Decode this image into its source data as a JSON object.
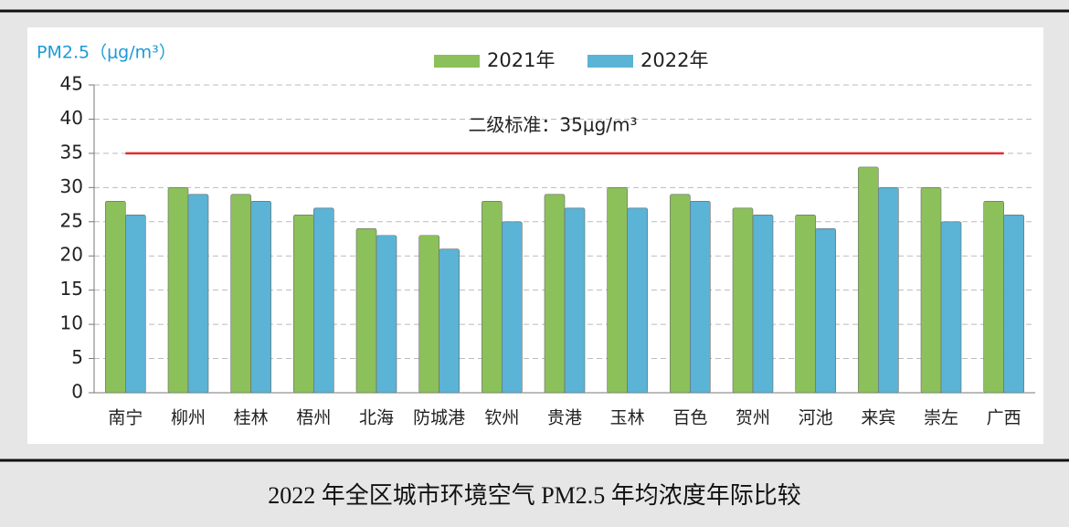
{
  "chart_data": {
    "type": "bar",
    "title": "2022 年全区城市环境空气 PM2.5 年均浓度年际比较",
    "y_label": "PM2.5（μg/m³）",
    "categories": [
      "南宁",
      "柳州",
      "桂林",
      "梧州",
      "北海",
      "防城港",
      "钦州",
      "贵港",
      "玉林",
      "百色",
      "贺州",
      "河池",
      "来宾",
      "崇左",
      "广西"
    ],
    "series": [
      {
        "name": "2021年",
        "color": "#8cc05b",
        "values": [
          28,
          30,
          29,
          26,
          24,
          23,
          28,
          29,
          30,
          29,
          27,
          26,
          33,
          30,
          28
        ]
      },
      {
        "name": "2022年",
        "color": "#5bb3d5",
        "values": [
          26,
          29,
          28,
          27,
          23,
          21,
          25,
          27,
          27,
          28,
          26,
          24,
          30,
          25,
          26
        ]
      }
    ],
    "reference_line": {
      "value": 35,
      "label": "二级标准：35μg/m³",
      "color": "#e32b2b"
    },
    "ylim": [
      0,
      45
    ],
    "yticks": [
      0,
      5,
      10,
      15,
      20,
      25,
      30,
      35,
      40,
      45
    ],
    "grid": true,
    "legend": "top"
  }
}
